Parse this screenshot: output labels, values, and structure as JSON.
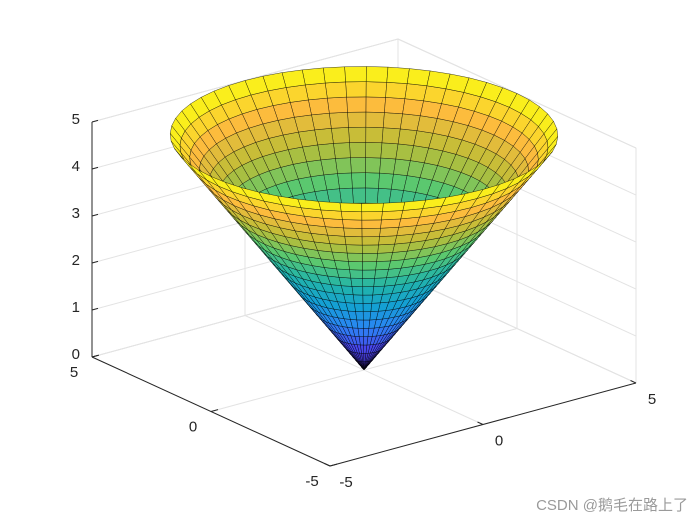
{
  "chart_data": {
    "type": "surface",
    "r": [
      0,
      0.25,
      0.5,
      0.75,
      1,
      1.25,
      1.5,
      1.75,
      2,
      2.25,
      2.5,
      2.75,
      3,
      3.25,
      3.5,
      3.75,
      4,
      4.25,
      4.5,
      4.75,
      5
    ],
    "z": [
      0,
      0.25,
      0.5,
      0.75,
      1,
      1.25,
      1.5,
      1.75,
      2,
      2.25,
      2.5,
      2.75,
      3,
      3.25,
      3.5,
      3.75,
      4,
      4.25,
      4.5,
      4.75,
      5
    ],
    "colormap": [
      "#3e26a8",
      "#4746eb",
      "#2b85f5",
      "#14a0d3",
      "#22b4aa",
      "#5bc86f",
      "#bbbd37",
      "#fcbc3d",
      "#f9fa14"
    ],
    "xlim": [
      -5,
      5
    ],
    "ylim": [
      -5,
      5
    ],
    "zlim": [
      0,
      5
    ],
    "xticks": [
      -5,
      0,
      5
    ],
    "yticks": [
      -5,
      0,
      5
    ],
    "zticks": [
      0,
      1,
      2,
      3,
      4,
      5
    ],
    "grid": true,
    "edge_color": "#000000"
  },
  "watermark": "CSDN @鹅毛在路上了"
}
